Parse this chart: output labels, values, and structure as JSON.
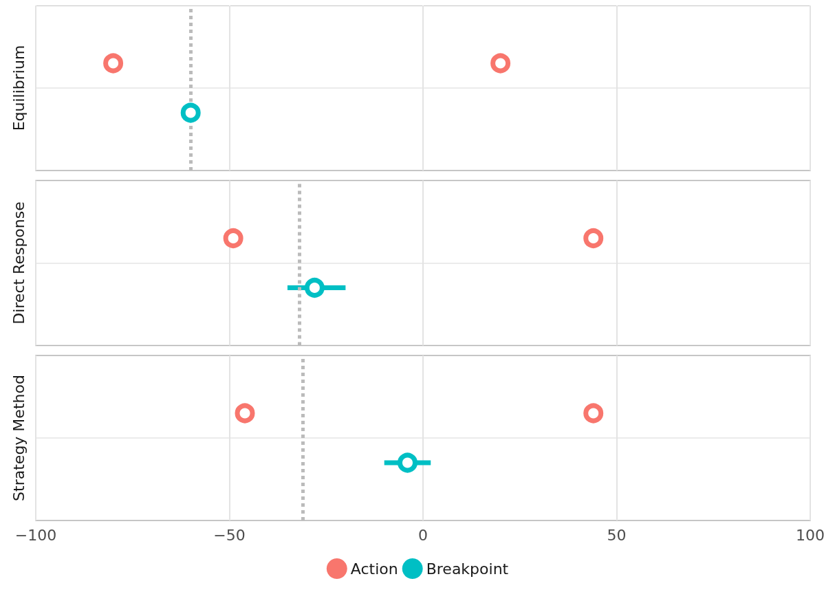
{
  "chart_data": {
    "type": "scatter",
    "orientation": "horizontal",
    "categories": [
      "Equilibrium",
      "Direct Response",
      "Strategy Method"
    ],
    "xlim": [
      -100,
      100
    ],
    "xticks": [
      -100,
      -50,
      0,
      50,
      100
    ],
    "grid": true,
    "legend": "bottom",
    "marker": "circle",
    "series": [
      {
        "name": "Action",
        "color": "#f8766d",
        "values": [
          -80,
          -49,
          -46
        ]
      },
      {
        "color": "#f8766d",
        "values": [
          20,
          44,
          44
        ]
      },
      {
        "name": "Breakpoint",
        "color": "#00bfc4",
        "values": [
          -60,
          -28,
          -4
        ],
        "errors": [
          null,
          [
            -35,
            -20
          ],
          [
            -10,
            2
          ]
        ]
      }
    ],
    "ref_lines": [
      {
        "axis": "x",
        "value": -60,
        "color": "#bbbbbb",
        "line_style": "dotted"
      },
      {
        "axis": "x",
        "value": -32,
        "color": "#bbbbbb",
        "line_style": "dotted"
      },
      {
        "axis": "x",
        "value": -31,
        "color": "#bbbbbb",
        "line_style": "dotted"
      }
    ]
  }
}
